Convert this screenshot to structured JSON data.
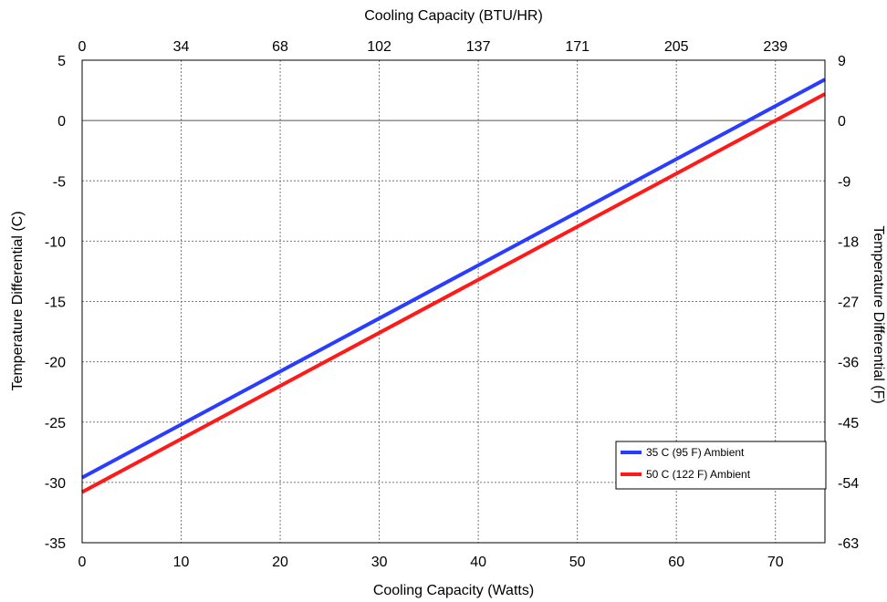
{
  "chart_data": {
    "type": "line",
    "xlabel": "Cooling Capacity (Watts)",
    "x2label": "Cooling Capacity (BTU/HR)",
    "ylabel": "Temperature Differential (C)",
    "y2label": "Temperature Differential (F)",
    "xlim": [
      0,
      75
    ],
    "ylim": [
      -35,
      5
    ],
    "x_ticks": [
      "0",
      "10",
      "20",
      "30",
      "40",
      "50",
      "60",
      "70"
    ],
    "x2_ticks": [
      "0",
      "34",
      "68",
      "102",
      "137",
      "171",
      "205",
      "239"
    ],
    "y_ticks": [
      "5",
      "0",
      "-5",
      "-10",
      "-15",
      "-20",
      "-25",
      "-30",
      "-35"
    ],
    "y2_ticks": [
      "9",
      "0",
      "-9",
      "-18",
      "-27",
      "-36",
      "-45",
      "-54",
      "-63"
    ],
    "grid": true,
    "legend_position": "bottom-right",
    "series": [
      {
        "name": "35 C (95 F) Ambient",
        "color": "#2a3cff",
        "x": [
          0,
          75
        ],
        "y": [
          -29.6,
          3.4
        ]
      },
      {
        "name": "50 C (122 F) Ambient",
        "color": "#ff1a1a",
        "x": [
          0,
          75
        ],
        "y": [
          -30.8,
          2.2
        ]
      }
    ]
  }
}
